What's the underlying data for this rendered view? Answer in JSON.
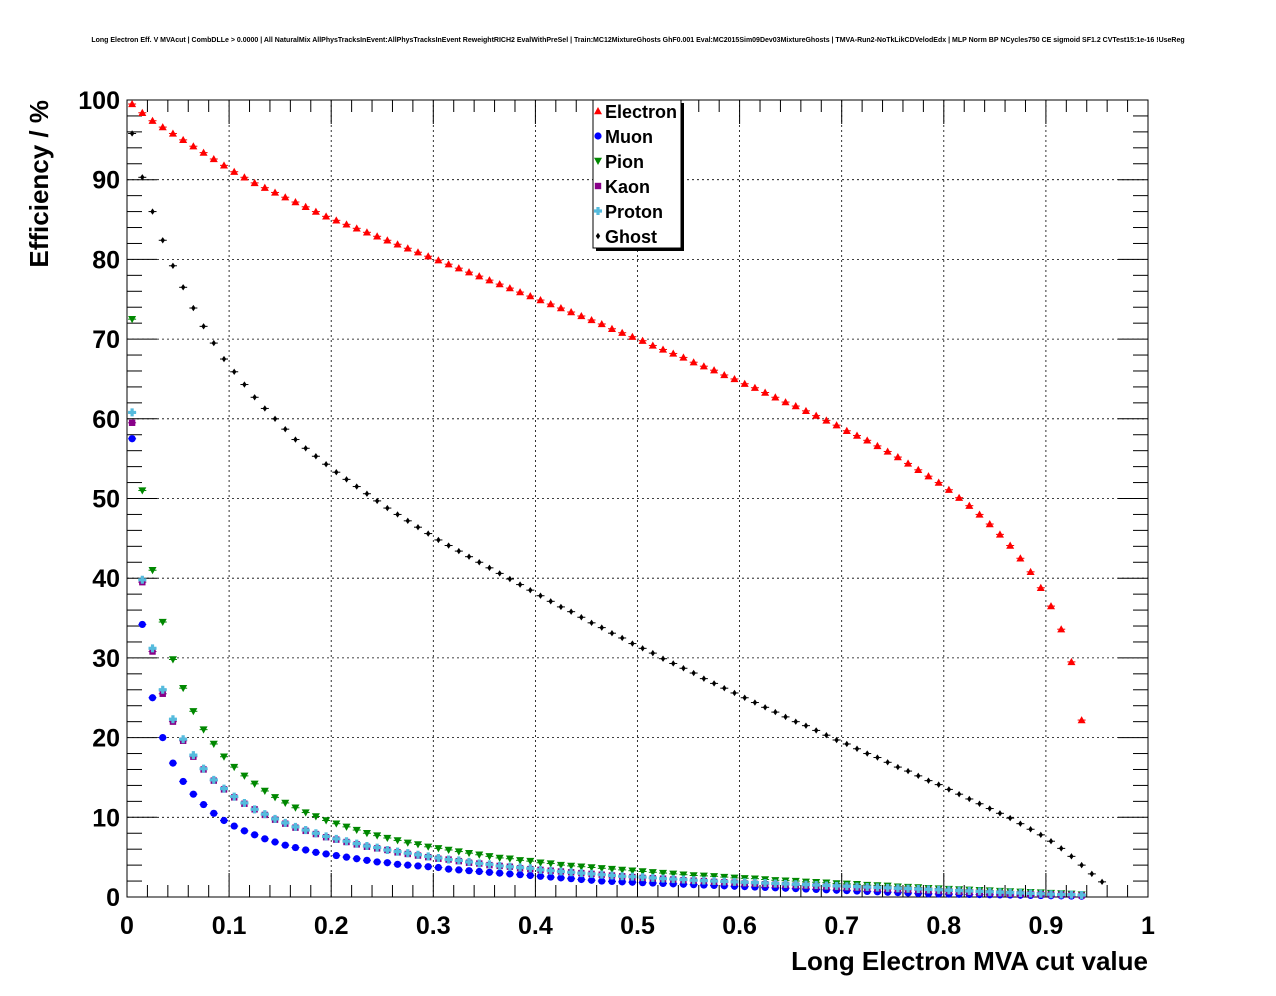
{
  "chart_data": {
    "type": "scatter",
    "title": "Long Electron Eff. V MVAcut | CombDLLe > 0.0000 | All NaturalMix AllPhysTracksInEvent:AllPhysTracksInEvent ReweightRICH2 EvalWithPreSel | Train:MC12MixtureGhosts GhF0.001 Eval:MC2015Sim09Dev03MixtureGhosts | TMVA-Run2-NoTkLikCDVelodEdx | MLP Norm BP NCycles750 CE sigmoid SF1.2 CVTest15:1e-16 !UseReg",
    "xlabel": "Long Electron MVA cut value",
    "ylabel": "Efficiency / %",
    "xlim": [
      0,
      1
    ],
    "ylim": [
      0,
      100
    ],
    "x_ticks": [
      "0",
      "0.1",
      "0.2",
      "0.3",
      "0.4",
      "0.5",
      "0.6",
      "0.7",
      "0.8",
      "0.9",
      "1"
    ],
    "y_ticks": [
      "0",
      "10",
      "20",
      "30",
      "40",
      "50",
      "60",
      "70",
      "80",
      "90",
      "100"
    ],
    "grid": true,
    "legend_position": "top-center",
    "x_start": 0.005,
    "x_step": 0.01,
    "series": [
      {
        "name": "Electron",
        "color": "#ff0000",
        "marker": "triangle-up",
        "values": [
          99.5,
          98.4,
          97.4,
          96.6,
          95.8,
          95.0,
          94.2,
          93.4,
          92.6,
          91.8,
          91.0,
          90.3,
          89.6,
          89.0,
          88.4,
          87.8,
          87.2,
          86.6,
          86.0,
          85.4,
          84.9,
          84.4,
          83.9,
          83.4,
          82.9,
          82.4,
          81.9,
          81.4,
          80.9,
          80.4,
          79.9,
          79.4,
          78.9,
          78.4,
          77.9,
          77.4,
          76.9,
          76.4,
          75.9,
          75.4,
          74.9,
          74.4,
          73.9,
          73.4,
          72.9,
          72.4,
          71.9,
          71.3,
          70.8,
          70.3,
          69.8,
          69.2,
          68.7,
          68.2,
          67.7,
          67.1,
          66.6,
          66.1,
          65.5,
          65.0,
          64.4,
          63.9,
          63.3,
          62.7,
          62.1,
          61.6,
          61.0,
          60.4,
          59.8,
          59.2,
          58.5,
          57.9,
          57.3,
          56.6,
          55.9,
          55.2,
          54.4,
          53.6,
          52.8,
          52.0,
          51.1,
          50.1,
          49.1,
          48.0,
          46.8,
          45.5,
          44.1,
          42.5,
          40.8,
          38.8,
          36.5,
          33.6,
          29.5,
          22.2
        ]
      },
      {
        "name": "Muon",
        "color": "#0000ff",
        "marker": "circle",
        "values": [
          57.5,
          34.2,
          25.0,
          20.0,
          16.8,
          14.5,
          12.9,
          11.6,
          10.5,
          9.6,
          8.9,
          8.3,
          7.8,
          7.3,
          6.9,
          6.5,
          6.2,
          5.9,
          5.6,
          5.4,
          5.2,
          5.0,
          4.8,
          4.6,
          4.4,
          4.3,
          4.1,
          4.0,
          3.9,
          3.8,
          3.7,
          3.5,
          3.4,
          3.3,
          3.2,
          3.1,
          3.0,
          2.9,
          2.8,
          2.7,
          2.6,
          2.5,
          2.4,
          2.3,
          2.2,
          2.1,
          2.0,
          1.95,
          1.9,
          1.85,
          1.8,
          1.75,
          1.7,
          1.65,
          1.6,
          1.55,
          1.5,
          1.45,
          1.4,
          1.35,
          1.3,
          1.25,
          1.2,
          1.15,
          1.1,
          1.05,
          1.0,
          0.95,
          0.9,
          0.85,
          0.8,
          0.75,
          0.7,
          0.65,
          0.6,
          0.55,
          0.5,
          0.45,
          0.4,
          0.38,
          0.36,
          0.34,
          0.32,
          0.3,
          0.28,
          0.26,
          0.24,
          0.22,
          0.2,
          0.18,
          0.16,
          0.14,
          0.12,
          0.1
        ]
      },
      {
        "name": "Pion",
        "color": "#008800",
        "marker": "triangle-down",
        "values": [
          72.5,
          51.0,
          41.0,
          34.5,
          29.8,
          26.2,
          23.3,
          21.0,
          19.2,
          17.6,
          16.3,
          15.2,
          14.2,
          13.3,
          12.5,
          11.8,
          11.2,
          10.6,
          10.1,
          9.6,
          9.2,
          8.8,
          8.4,
          8.0,
          7.7,
          7.4,
          7.1,
          6.8,
          6.6,
          6.3,
          6.1,
          5.9,
          5.7,
          5.5,
          5.3,
          5.1,
          4.9,
          4.8,
          4.6,
          4.5,
          4.3,
          4.2,
          4.0,
          3.9,
          3.8,
          3.7,
          3.6,
          3.5,
          3.4,
          3.3,
          3.2,
          3.1,
          3.0,
          2.9,
          2.8,
          2.7,
          2.65,
          2.6,
          2.5,
          2.4,
          2.35,
          2.3,
          2.2,
          2.1,
          2.05,
          2.0,
          1.9,
          1.85,
          1.8,
          1.7,
          1.65,
          1.6,
          1.5,
          1.45,
          1.4,
          1.3,
          1.25,
          1.2,
          1.1,
          1.05,
          1.0,
          0.95,
          0.9,
          0.85,
          0.8,
          0.75,
          0.7,
          0.65,
          0.6,
          0.55,
          0.5,
          0.45,
          0.4,
          0.3
        ]
      },
      {
        "name": "Kaon",
        "color": "#880088",
        "marker": "square",
        "values": [
          59.5,
          39.5,
          30.8,
          25.5,
          22.0,
          19.6,
          17.6,
          16.0,
          14.6,
          13.5,
          12.5,
          11.7,
          11.0,
          10.3,
          9.7,
          9.2,
          8.7,
          8.3,
          7.9,
          7.5,
          7.2,
          6.9,
          6.6,
          6.3,
          6.1,
          5.9,
          5.6,
          5.4,
          5.2,
          5.0,
          4.8,
          4.7,
          4.5,
          4.3,
          4.2,
          4.0,
          3.9,
          3.8,
          3.6,
          3.5,
          3.4,
          3.3,
          3.2,
          3.1,
          3.0,
          2.9,
          2.8,
          2.7,
          2.6,
          2.5,
          2.4,
          2.35,
          2.3,
          2.2,
          2.1,
          2.05,
          2.0,
          1.9,
          1.85,
          1.8,
          1.7,
          1.65,
          1.6,
          1.55,
          1.5,
          1.45,
          1.4,
          1.35,
          1.3,
          1.25,
          1.2,
          1.15,
          1.1,
          1.05,
          1.0,
          0.95,
          0.9,
          0.85,
          0.8,
          0.75,
          0.7,
          0.65,
          0.6,
          0.55,
          0.5,
          0.45,
          0.4,
          0.38,
          0.36,
          0.34,
          0.32,
          0.3,
          0.28,
          0.2
        ]
      },
      {
        "name": "Proton",
        "color": "#55bbdd",
        "marker": "cross",
        "values": [
          60.8,
          39.8,
          31.2,
          26.0,
          22.3,
          19.8,
          17.8,
          16.1,
          14.7,
          13.6,
          12.6,
          11.8,
          11.0,
          10.4,
          9.8,
          9.3,
          8.8,
          8.4,
          8.0,
          7.6,
          7.3,
          7.0,
          6.7,
          6.4,
          6.2,
          5.9,
          5.7,
          5.5,
          5.3,
          5.1,
          4.9,
          4.7,
          4.6,
          4.4,
          4.2,
          4.1,
          3.9,
          3.8,
          3.7,
          3.6,
          3.4,
          3.3,
          3.2,
          3.1,
          3.0,
          2.9,
          2.8,
          2.7,
          2.6,
          2.55,
          2.5,
          2.4,
          2.3,
          2.25,
          2.2,
          2.1,
          2.05,
          2.0,
          1.95,
          1.9,
          1.85,
          1.8,
          1.75,
          1.7,
          1.65,
          1.6,
          1.55,
          1.5,
          1.45,
          1.4,
          1.35,
          1.3,
          1.25,
          1.2,
          1.15,
          1.1,
          1.05,
          1.0,
          0.95,
          0.9,
          0.85,
          0.8,
          0.75,
          0.7,
          0.65,
          0.6,
          0.55,
          0.5,
          0.45,
          0.4,
          0.35,
          0.32,
          0.3,
          0.25
        ]
      },
      {
        "name": "Ghost",
        "color": "#000000",
        "marker": "diamond",
        "values": [
          95.8,
          90.3,
          86.0,
          82.4,
          79.2,
          76.5,
          73.9,
          71.6,
          69.5,
          67.5,
          65.9,
          64.3,
          62.7,
          61.3,
          60.0,
          58.7,
          57.4,
          56.3,
          55.3,
          54.3,
          53.3,
          52.4,
          51.5,
          50.6,
          49.7,
          48.8,
          48.0,
          47.2,
          46.4,
          45.6,
          44.8,
          44.1,
          43.4,
          42.7,
          42.0,
          41.3,
          40.6,
          39.9,
          39.2,
          38.5,
          37.8,
          37.1,
          36.4,
          35.8,
          35.1,
          34.4,
          33.8,
          33.1,
          32.5,
          31.8,
          31.2,
          30.6,
          29.9,
          29.3,
          28.7,
          28.1,
          27.4,
          26.8,
          26.2,
          25.6,
          25.0,
          24.4,
          23.8,
          23.2,
          22.6,
          22.0,
          21.5,
          20.9,
          20.3,
          19.7,
          19.2,
          18.6,
          18.0,
          17.5,
          16.9,
          16.3,
          15.8,
          15.2,
          14.6,
          14.1,
          13.5,
          12.9,
          12.3,
          11.7,
          11.1,
          10.5,
          9.9,
          9.2,
          8.5,
          7.8,
          7.0,
          6.1,
          5.1,
          4.0,
          2.9,
          1.9
        ]
      }
    ]
  }
}
